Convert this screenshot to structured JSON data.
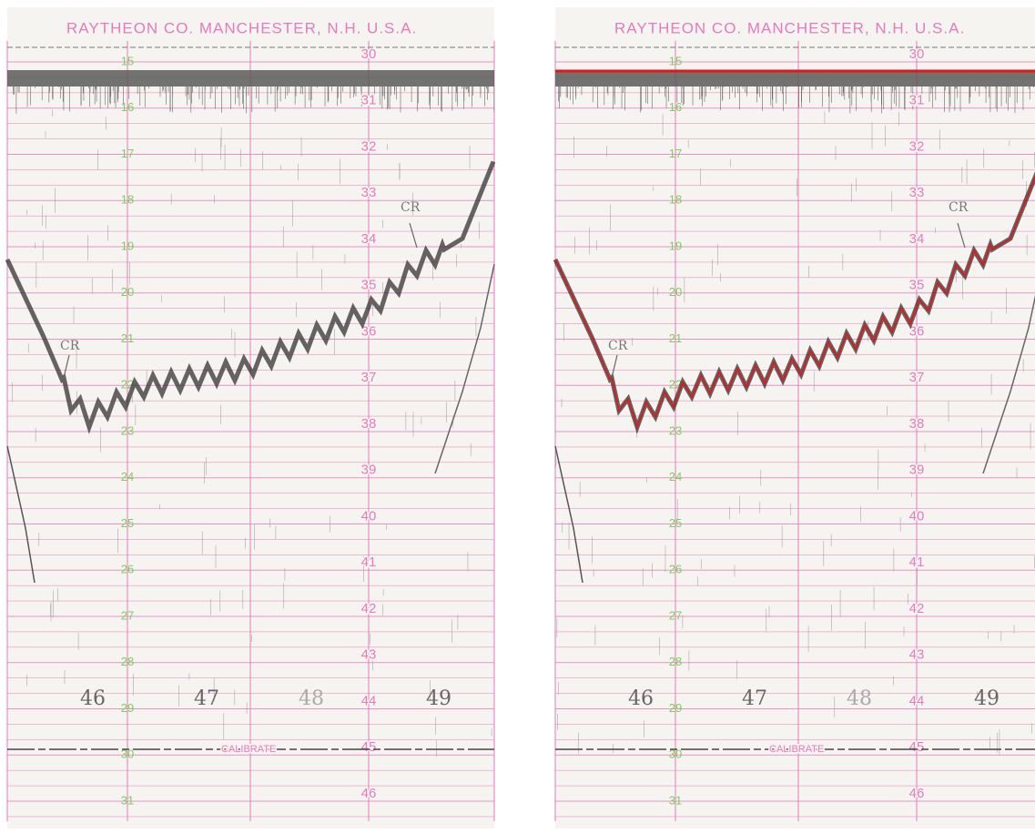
{
  "panels": [
    {
      "header": "RAYTHEON CO. MANCHESTER, N.H. U.S.A.",
      "left_scale": [
        "15",
        "16",
        "17",
        "18",
        "19",
        "20",
        "21",
        "22",
        "23",
        "24",
        "25",
        "26",
        "27",
        "28",
        "29",
        "30",
        "31"
      ],
      "right_scale": [
        "30",
        "31",
        "32",
        "33",
        "34",
        "35",
        "36",
        "37",
        "38",
        "39",
        "40",
        "41",
        "42",
        "43",
        "44",
        "45",
        "46"
      ],
      "hand_labels": [
        "46",
        "47",
        "48",
        "49"
      ],
      "annotations": [
        "CR",
        "CR"
      ],
      "calibrate": "CALIBRATE"
    },
    {
      "header": "RAYTHEON CO. MANCHESTER, N.H. U.S.A.",
      "left_scale": [
        "15",
        "16",
        "17",
        "18",
        "19",
        "20",
        "21",
        "22",
        "23",
        "24",
        "25",
        "26",
        "27",
        "28",
        "29",
        "30",
        "31"
      ],
      "right_scale": [
        "30",
        "31",
        "32",
        "33",
        "34",
        "35",
        "36",
        "37",
        "38",
        "39",
        "40",
        "41",
        "42",
        "43",
        "44",
        "45",
        "46"
      ],
      "hand_labels": [
        "46",
        "47",
        "48",
        "49"
      ],
      "annotations": [
        "CR",
        "CR"
      ],
      "calibrate": "CALIBRATE"
    }
  ]
}
